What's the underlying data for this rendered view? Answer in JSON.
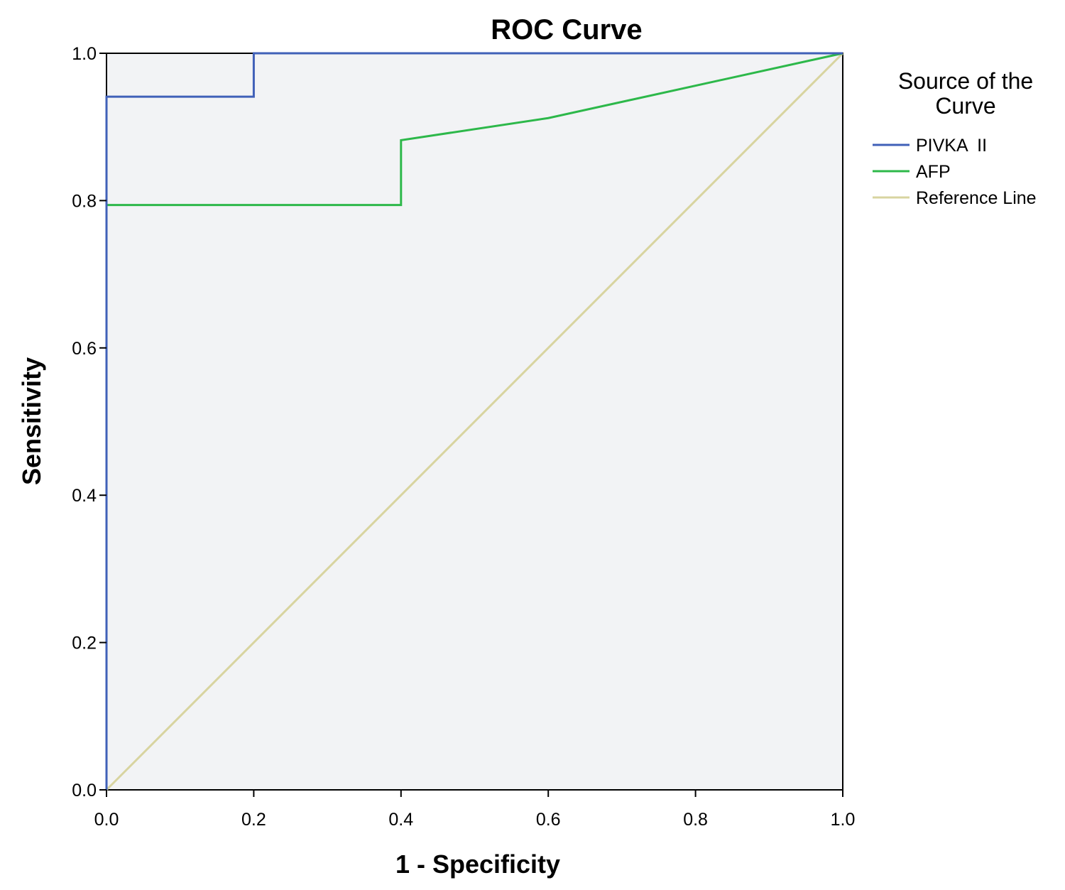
{
  "chart_data": {
    "type": "line",
    "title": "ROC Curve",
    "xlabel": "1 - Specificity",
    "ylabel": "Sensitivity",
    "xlim": [
      0,
      1
    ],
    "ylim": [
      0,
      1
    ],
    "x_ticks": [
      "0.0",
      "0.2",
      "0.4",
      "0.6",
      "0.8",
      "1.0"
    ],
    "y_ticks": [
      "0.0",
      "0.2",
      "0.4",
      "0.6",
      "0.8",
      "1.0"
    ],
    "grid": false,
    "legend": {
      "title_lines": [
        "Source of the",
        "Curve"
      ],
      "placement": "right"
    },
    "series": [
      {
        "name": "PIVKA  II",
        "color": "#4060b8",
        "points": [
          [
            0,
            0
          ],
          [
            0,
            0.941
          ],
          [
            0.2,
            0.941
          ],
          [
            0.2,
            1.0
          ],
          [
            1.0,
            1.0
          ]
        ]
      },
      {
        "name": "AFP",
        "color": "#2db84a",
        "points": [
          [
            0,
            0
          ],
          [
            0,
            0.794
          ],
          [
            0.4,
            0.794
          ],
          [
            0.4,
            0.882
          ],
          [
            0.6,
            0.912
          ],
          [
            1.0,
            1.0
          ]
        ]
      },
      {
        "name": "Reference Line",
        "color": "#d8d4a0",
        "points": [
          [
            0,
            0
          ],
          [
            1.0,
            1.0
          ]
        ]
      }
    ],
    "plot_background": "#f2f3f5"
  }
}
